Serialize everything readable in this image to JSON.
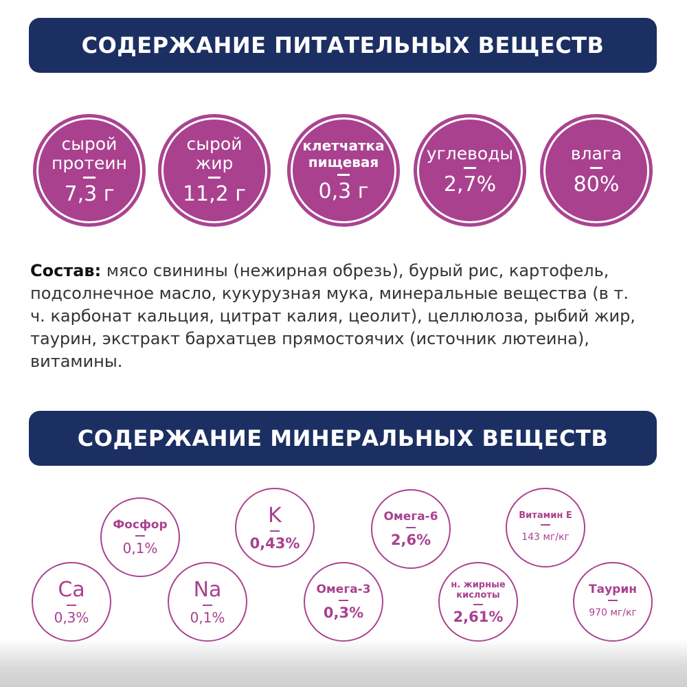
{
  "nutrients_title": "СОДЕРЖАНИЕ ПИТАТЕЛЬНЫХ ВЕЩЕСТВ",
  "nutrients": [
    {
      "label": "сырой\nпротеин",
      "value": "7,3 г"
    },
    {
      "label": "сырой\nжир",
      "value": "11,2 г"
    },
    {
      "label": "клетчатка\nпищевая",
      "value": "0,3 г"
    },
    {
      "label": "углеводы",
      "value": "2,7%"
    },
    {
      "label": "влага",
      "value": "80%"
    }
  ],
  "composition": {
    "heading": "Состав:",
    "text": " мясо свинины (нежирная обрезь), бурый рис, картофель, подсолнечное масло, кукурузная мука, минеральные вещества (в т. ч. карбонат кальция, цитрат калия, цеолит), целлюлоза, рыбий жир, таурин, экстракт бархатцев прямостоячих (источник лютеина), витамины."
  },
  "minerals_title": "СОДЕРЖАНИЕ МИНЕРАЛЬНЫХ ВЕЩЕСТВ",
  "minerals": [
    {
      "label": "Фосфор",
      "value": "0,1%"
    },
    {
      "label": "K",
      "value": "0,43%"
    },
    {
      "label": "Омега-6",
      "value": "2,6%"
    },
    {
      "label": "Витамин Е",
      "value": "143 мг/кг"
    },
    {
      "label": "Ca",
      "value": "0,3%"
    },
    {
      "label": "Na",
      "value": "0,1%"
    },
    {
      "label": "Омега-3",
      "value": "0,3%"
    },
    {
      "label": "н. жирные\nкислоты",
      "value": "2,61%"
    },
    {
      "label": "Таурин",
      "value": "970 мг/кг"
    }
  ],
  "colors": {
    "banner": "#1b2f63",
    "accent": "#a9418f"
  }
}
